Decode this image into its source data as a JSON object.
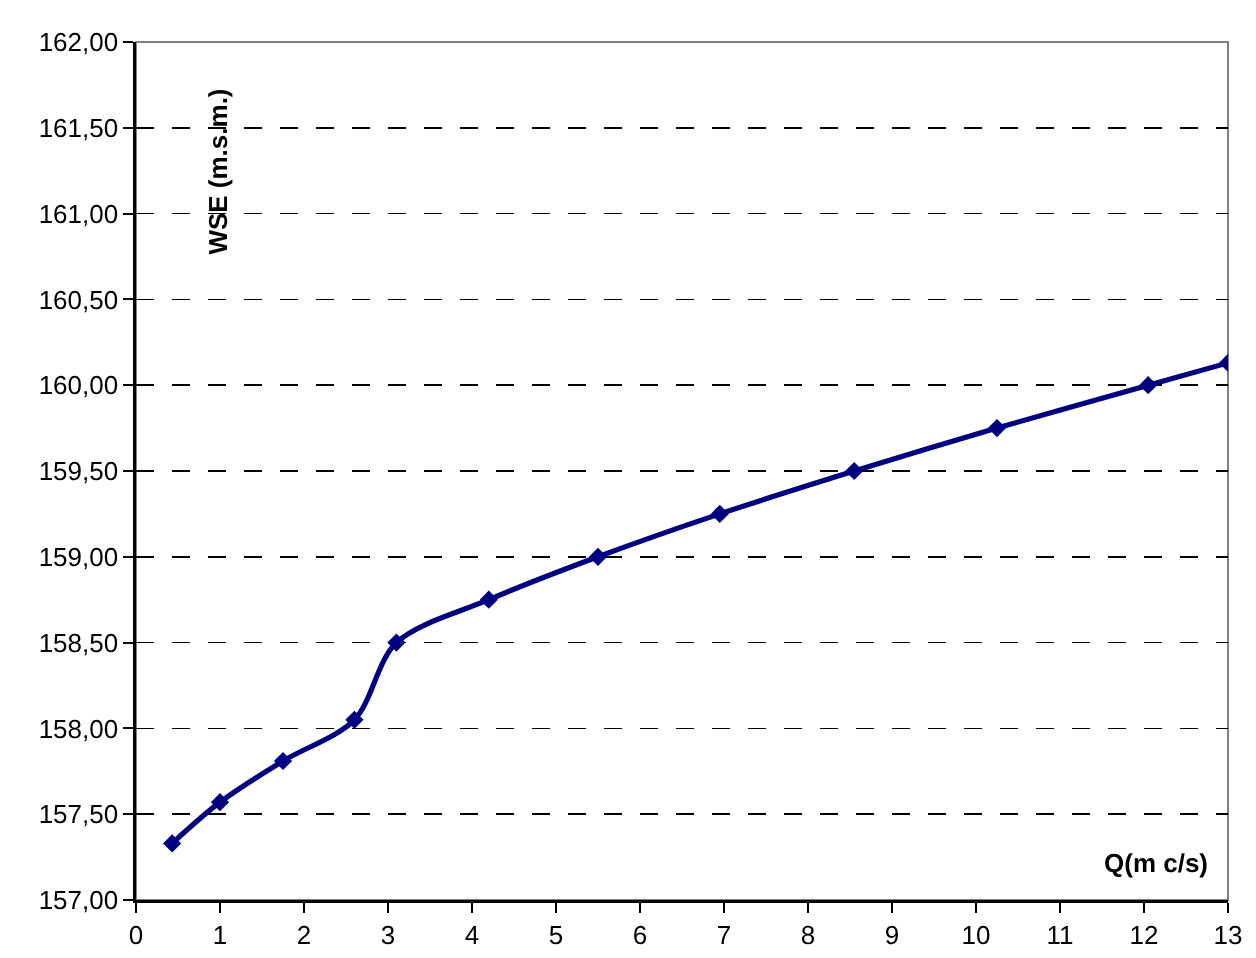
{
  "chart_data": {
    "type": "line",
    "xlabel": "Q(m c/s)",
    "ylabel": "WSE (m.s.m.)",
    "x": [
      0.43,
      1.0,
      1.75,
      2.6,
      3.1,
      4.2,
      5.5,
      6.95,
      8.55,
      10.25,
      12.05,
      13
    ],
    "series": [
      {
        "color": "#000080",
        "values": [
          157.33,
          157.57,
          157.81,
          158.05,
          158.5,
          158.75,
          159.0,
          159.25,
          159.5,
          159.75,
          160.0,
          160.13
        ]
      }
    ],
    "xlim": [
      0,
      13
    ],
    "xticks": [
      0,
      1,
      2,
      3,
      4,
      5,
      6,
      7,
      8,
      9,
      10,
      11,
      12,
      13
    ],
    "ylim": [
      157,
      162
    ],
    "yticks": [
      {
        "value": 157,
        "label": "157,00"
      },
      {
        "value": 157.5,
        "label": "157,50"
      },
      {
        "value": 158,
        "label": "158,00"
      },
      {
        "value": 158.5,
        "label": "158,50"
      },
      {
        "value": 159,
        "label": "159,00"
      },
      {
        "value": 159.5,
        "label": "159,50"
      },
      {
        "value": 160,
        "label": "160,00"
      },
      {
        "value": 160.5,
        "label": "160,50"
      },
      {
        "value": 161,
        "label": "161,00"
      },
      {
        "value": 161.5,
        "label": "161,50"
      },
      {
        "value": 162,
        "label": "162,00"
      }
    ],
    "grid": "y",
    "marker": "diamond",
    "line_style": "solid"
  }
}
